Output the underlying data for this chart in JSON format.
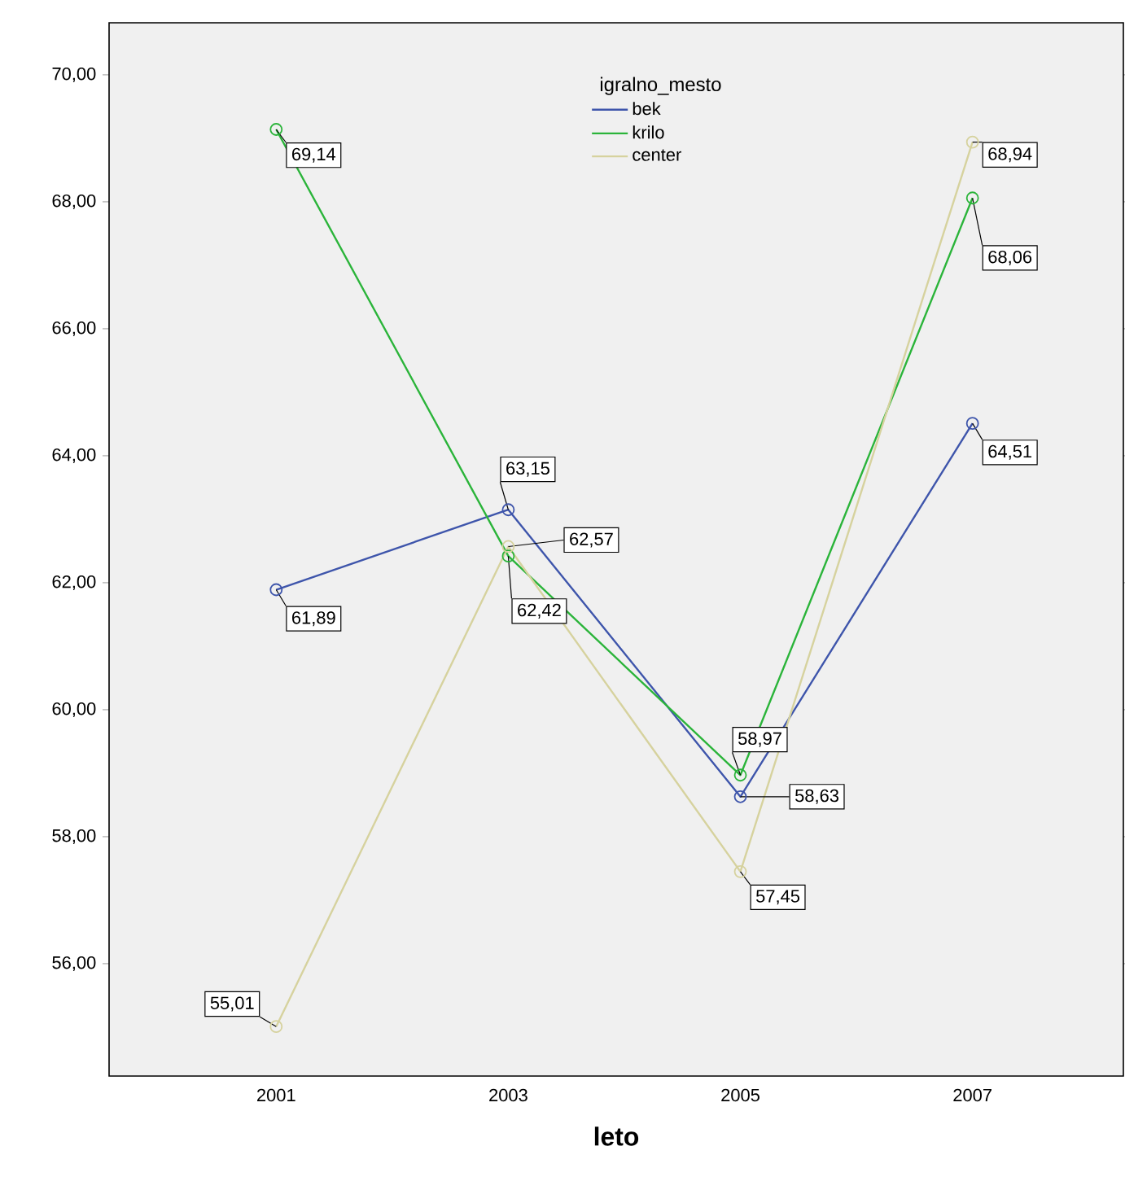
{
  "chart_data": {
    "type": "line",
    "xlabel": "leto",
    "legend_title": "igralno_mesto",
    "categories": [
      "2001",
      "2003",
      "2005",
      "2007"
    ],
    "series": [
      {
        "name": "bek",
        "color": "#3e55ab",
        "values": [
          61.89,
          63.15,
          58.63,
          64.51
        ],
        "value_labels": [
          "61,89",
          "63,15",
          "58,63",
          "64,51"
        ]
      },
      {
        "name": "krilo",
        "color": "#2bb43a",
        "values": [
          69.14,
          62.42,
          58.97,
          68.06
        ],
        "value_labels": [
          "69,14",
          "62,42",
          "58,97",
          "68,06"
        ]
      },
      {
        "name": "center",
        "color": "#d6d29e",
        "values": [
          55.01,
          62.57,
          57.45,
          68.94
        ],
        "value_labels": [
          "55,01",
          "62,57",
          "57,45",
          "68,94"
        ]
      }
    ],
    "ylim": [
      54.23,
      70.82
    ],
    "yticks": [
      {
        "value": 56,
        "label": "56,00"
      },
      {
        "value": 58,
        "label": "58,00"
      },
      {
        "value": 60,
        "label": "60,00"
      },
      {
        "value": 62,
        "label": "62,00"
      },
      {
        "value": 64,
        "label": "64,00"
      },
      {
        "value": 66,
        "label": "66,00"
      },
      {
        "value": 68,
        "label": "68,00"
      },
      {
        "value": 70,
        "label": "70,00"
      }
    ],
    "legend": "top",
    "marker": "circle",
    "line_style": "solid",
    "grid": false
  }
}
